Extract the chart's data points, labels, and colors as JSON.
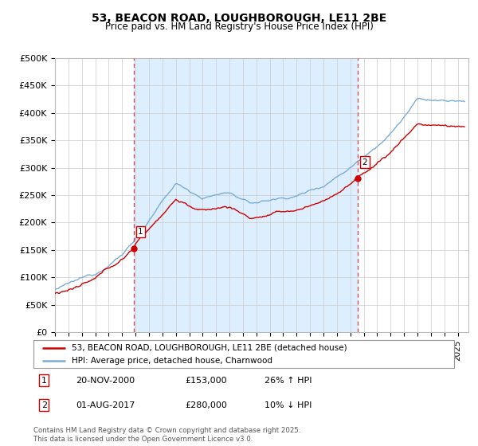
{
  "title": "53, BEACON ROAD, LOUGHBOROUGH, LE11 2BE",
  "subtitle": "Price paid vs. HM Land Registry's House Price Index (HPI)",
  "ylabel_ticks": [
    "£0",
    "£50K",
    "£100K",
    "£150K",
    "£200K",
    "£250K",
    "£300K",
    "£350K",
    "£400K",
    "£450K",
    "£500K"
  ],
  "ytick_vals": [
    0,
    50000,
    100000,
    150000,
    200000,
    250000,
    300000,
    350000,
    400000,
    450000,
    500000
  ],
  "ylim": [
    0,
    500000
  ],
  "xlim_start": 1995.0,
  "xlim_end": 2025.8,
  "red_color": "#cc0000",
  "blue_color": "#7aacd6",
  "fill_color": "#ddeeff",
  "dashed_color": "#cc4444",
  "marker1_x": 2000.88,
  "marker1_y": 153000,
  "marker2_x": 2017.58,
  "marker2_y": 280000,
  "legend_line1": "53, BEACON ROAD, LOUGHBOROUGH, LE11 2BE (detached house)",
  "legend_line2": "HPI: Average price, detached house, Charnwood",
  "note1_label": "1",
  "note1_date": "20-NOV-2000",
  "note1_price": "£153,000",
  "note1_hpi": "26% ↑ HPI",
  "note2_label": "2",
  "note2_date": "01-AUG-2017",
  "note2_price": "£280,000",
  "note2_hpi": "10% ↓ HPI",
  "footer": "Contains HM Land Registry data © Crown copyright and database right 2025.\nThis data is licensed under the Open Government Licence v3.0."
}
